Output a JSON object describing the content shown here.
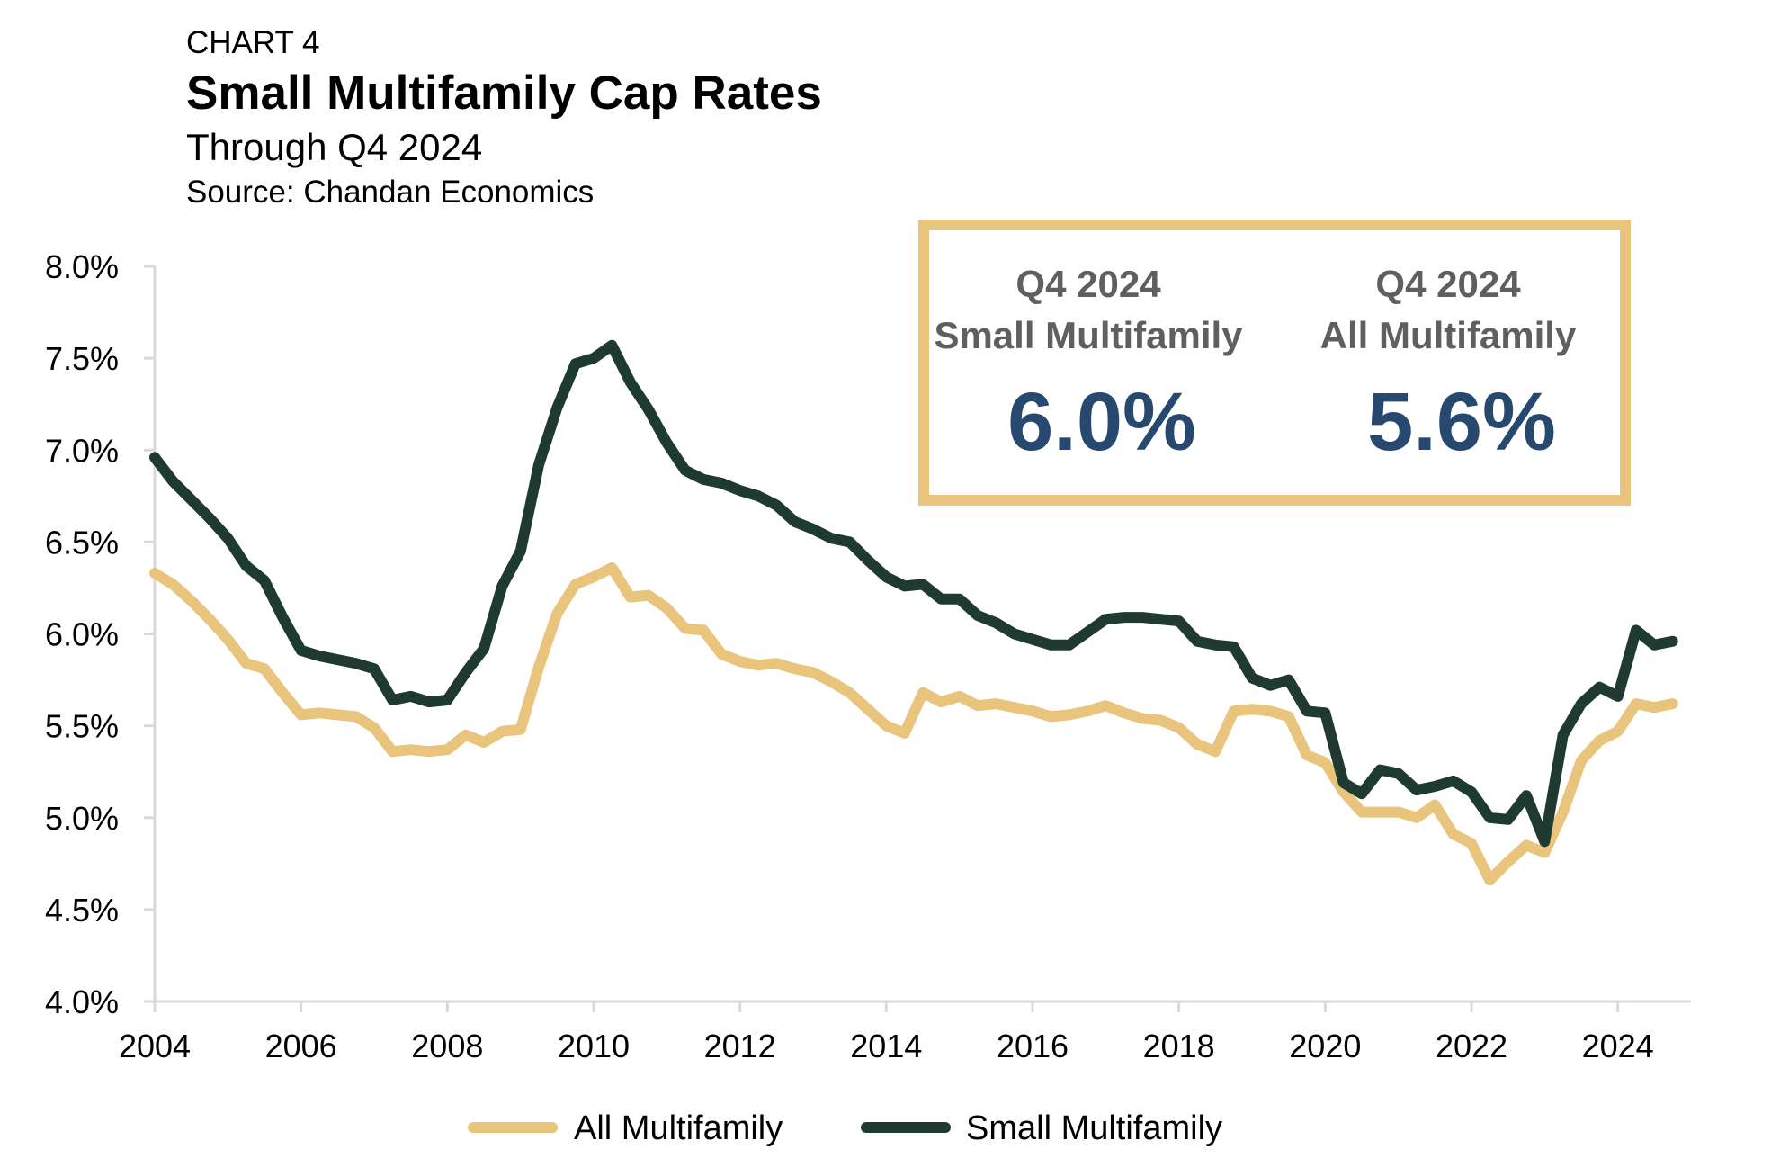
{
  "header": {
    "chart_label": "CHART 4",
    "title": "Small Multifamily Cap Rates",
    "subtitle": "Through Q4 2024",
    "source": "Source: Chandan Economics"
  },
  "callout": {
    "left": {
      "heading1": "Q4 2024",
      "heading2": "Small Multifamily",
      "value": "6.0%"
    },
    "right": {
      "heading1": "Q4 2024",
      "heading2": "All Multifamily",
      "value": "5.6%"
    },
    "border_color": "#e8c47c",
    "value_color": "#27496f"
  },
  "legend": [
    {
      "label": "All Multifamily",
      "color": "#e8c47c"
    },
    {
      "label": "Small Multifamily",
      "color": "#1f3a30"
    }
  ],
  "chart_data": {
    "type": "line",
    "title": "Small Multifamily Cap Rates",
    "ylim": [
      4.0,
      8.0
    ],
    "xlim": [
      2004.0,
      2025.0
    ],
    "y_ticks": [
      "4.0%",
      "4.5%",
      "5.0%",
      "5.5%",
      "6.0%",
      "6.5%",
      "7.0%",
      "7.5%",
      "8.0%"
    ],
    "y_tick_values": [
      4.0,
      4.5,
      5.0,
      5.5,
      6.0,
      6.5,
      7.0,
      7.5,
      8.0
    ],
    "x_ticks": [
      "2004",
      "2006",
      "2008",
      "2010",
      "2012",
      "2014",
      "2016",
      "2018",
      "2020",
      "2022",
      "2024"
    ],
    "x_tick_values": [
      2004,
      2006,
      2008,
      2010,
      2012,
      2014,
      2016,
      2018,
      2020,
      2022,
      2024
    ],
    "grid": false,
    "legend_position": "bottom",
    "series": [
      {
        "name": "All Multifamily",
        "color": "#e8c47c",
        "x": [
          2004.0,
          2004.25,
          2004.5,
          2004.75,
          2005.0,
          2005.25,
          2005.5,
          2005.75,
          2006.0,
          2006.25,
          2006.5,
          2006.75,
          2007.0,
          2007.25,
          2007.5,
          2007.75,
          2008.0,
          2008.25,
          2008.5,
          2008.75,
          2009.0,
          2009.25,
          2009.5,
          2009.75,
          2010.0,
          2010.25,
          2010.5,
          2010.75,
          2011.0,
          2011.25,
          2011.5,
          2011.75,
          2012.0,
          2012.25,
          2012.5,
          2012.75,
          2013.0,
          2013.25,
          2013.5,
          2013.75,
          2014.0,
          2014.25,
          2014.5,
          2014.75,
          2015.0,
          2015.25,
          2015.5,
          2015.75,
          2016.0,
          2016.25,
          2016.5,
          2016.75,
          2017.0,
          2017.25,
          2017.5,
          2017.75,
          2018.0,
          2018.25,
          2018.5,
          2018.75,
          2019.0,
          2019.25,
          2019.5,
          2019.75,
          2020.0,
          2020.25,
          2020.5,
          2020.75,
          2021.0,
          2021.25,
          2021.5,
          2021.75,
          2022.0,
          2022.25,
          2022.5,
          2022.75,
          2023.0,
          2023.25,
          2023.5,
          2023.75,
          2024.0,
          2024.25,
          2024.5,
          2024.75
        ],
        "values": [
          6.33,
          6.27,
          6.18,
          6.08,
          5.97,
          5.84,
          5.81,
          5.68,
          5.56,
          5.57,
          5.56,
          5.55,
          5.49,
          5.36,
          5.37,
          5.36,
          5.37,
          5.45,
          5.41,
          5.47,
          5.48,
          5.82,
          6.11,
          6.27,
          6.31,
          6.36,
          6.2,
          6.21,
          6.14,
          6.03,
          6.02,
          5.89,
          5.85,
          5.83,
          5.84,
          5.81,
          5.79,
          5.74,
          5.68,
          5.59,
          5.5,
          5.46,
          5.68,
          5.63,
          5.66,
          5.61,
          5.62,
          5.6,
          5.58,
          5.55,
          5.56,
          5.58,
          5.61,
          5.57,
          5.54,
          5.53,
          5.49,
          5.4,
          5.36,
          5.58,
          5.59,
          5.58,
          5.55,
          5.34,
          5.3,
          5.14,
          5.03,
          5.03,
          5.03,
          5.0,
          5.07,
          4.91,
          4.86,
          4.66,
          4.76,
          4.85,
          4.81,
          5.03,
          5.31,
          5.42,
          5.47,
          5.62,
          5.6,
          5.62
        ]
      },
      {
        "name": "Small Multifamily",
        "color": "#1f3a30",
        "x": [
          2004.0,
          2004.25,
          2004.5,
          2004.75,
          2005.0,
          2005.25,
          2005.5,
          2005.75,
          2006.0,
          2006.25,
          2006.5,
          2006.75,
          2007.0,
          2007.25,
          2007.5,
          2007.75,
          2008.0,
          2008.25,
          2008.5,
          2008.75,
          2009.0,
          2009.25,
          2009.5,
          2009.75,
          2010.0,
          2010.25,
          2010.5,
          2010.75,
          2011.0,
          2011.25,
          2011.5,
          2011.75,
          2012.0,
          2012.25,
          2012.5,
          2012.75,
          2013.0,
          2013.25,
          2013.5,
          2013.75,
          2014.0,
          2014.25,
          2014.5,
          2014.75,
          2015.0,
          2015.25,
          2015.5,
          2015.75,
          2016.0,
          2016.25,
          2016.5,
          2016.75,
          2017.0,
          2017.25,
          2017.5,
          2017.75,
          2018.0,
          2018.25,
          2018.5,
          2018.75,
          2019.0,
          2019.25,
          2019.5,
          2019.75,
          2020.0,
          2020.25,
          2020.5,
          2020.75,
          2021.0,
          2021.25,
          2021.5,
          2021.75,
          2022.0,
          2022.25,
          2022.5,
          2022.75,
          2023.0,
          2023.25,
          2023.5,
          2023.75,
          2024.0,
          2024.25,
          2024.5,
          2024.75
        ],
        "values": [
          6.96,
          6.83,
          6.73,
          6.63,
          6.52,
          6.37,
          6.29,
          6.09,
          5.91,
          5.88,
          5.86,
          5.84,
          5.81,
          5.64,
          5.66,
          5.63,
          5.64,
          5.79,
          5.92,
          6.26,
          6.45,
          6.92,
          7.23,
          7.47,
          7.5,
          7.57,
          7.37,
          7.22,
          7.04,
          6.89,
          6.84,
          6.82,
          6.78,
          6.75,
          6.7,
          6.61,
          6.57,
          6.52,
          6.5,
          6.4,
          6.31,
          6.26,
          6.27,
          6.19,
          6.19,
          6.1,
          6.06,
          6.0,
          5.97,
          5.94,
          5.94,
          6.01,
          6.08,
          6.09,
          6.09,
          6.08,
          6.07,
          5.96,
          5.94,
          5.93,
          5.76,
          5.72,
          5.75,
          5.58,
          5.57,
          5.19,
          5.13,
          5.26,
          5.24,
          5.15,
          5.17,
          5.2,
          5.14,
          5.0,
          4.99,
          5.12,
          4.87,
          5.45,
          5.62,
          5.71,
          5.66,
          6.02,
          5.94,
          5.96
        ]
      }
    ]
  }
}
